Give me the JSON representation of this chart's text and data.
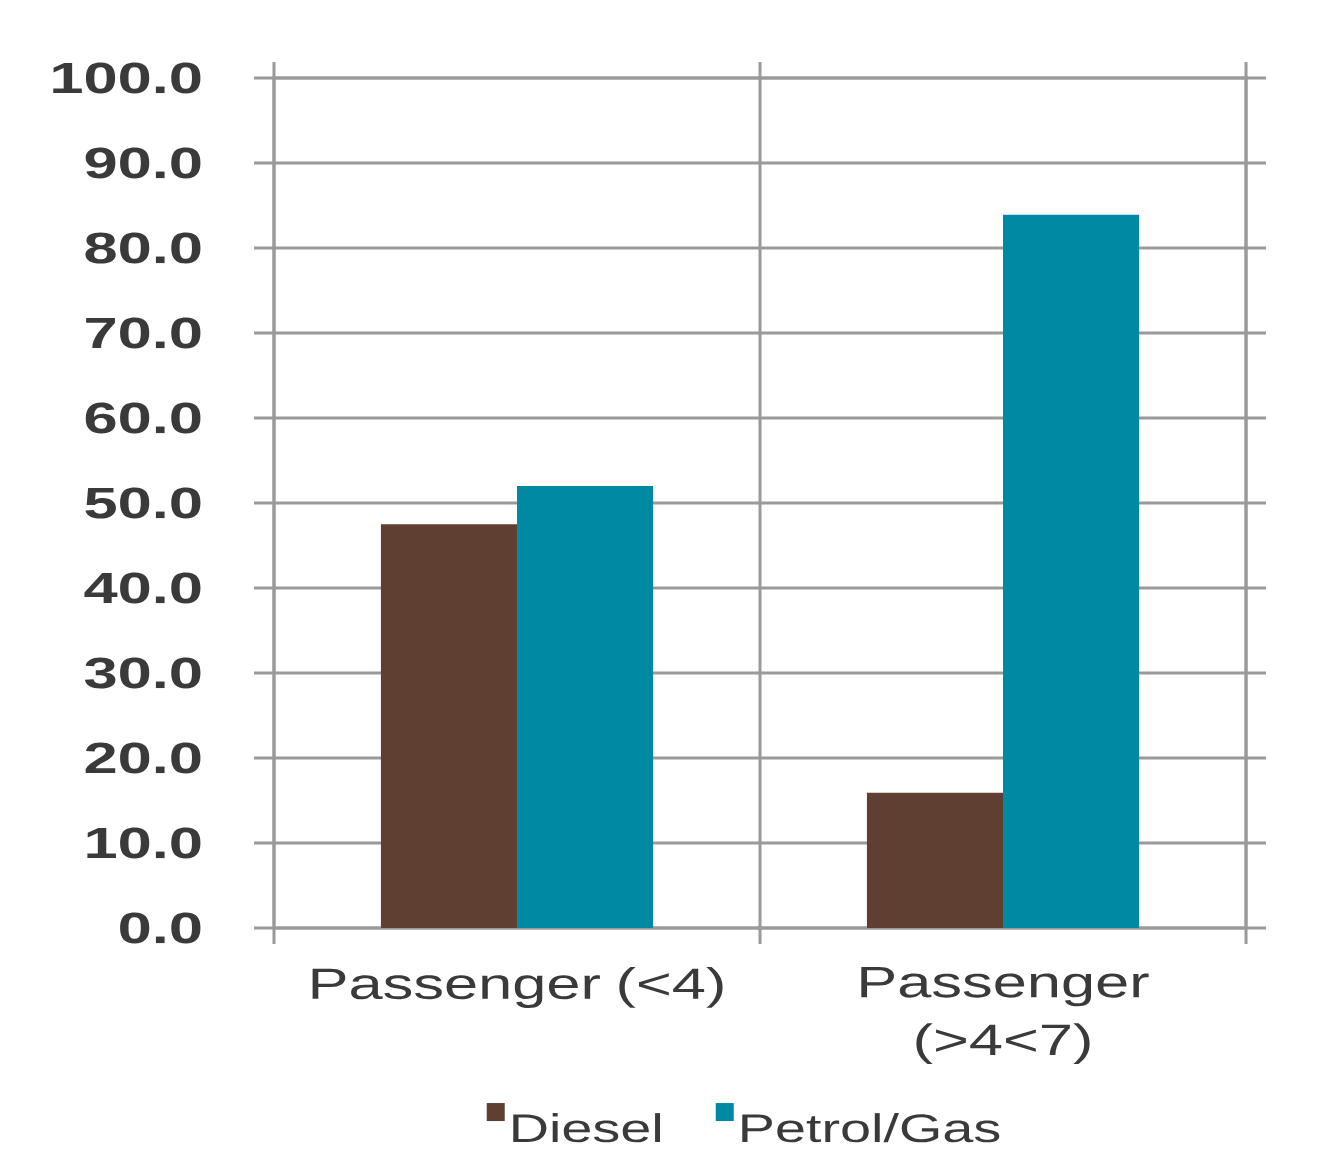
{
  "chart_data": {
    "type": "bar",
    "categories": [
      "Passenger (<4)",
      "Passenger (>4<7)"
    ],
    "series": [
      {
        "name": "Diesel",
        "color": "#5f3f31",
        "values": [
          47.5,
          15.9
        ]
      },
      {
        "name": "Petrol/Gas",
        "color": "#0089a3",
        "values": [
          52.0,
          83.9
        ]
      }
    ],
    "ylim": [
      0,
      100
    ],
    "yticks": [
      {
        "value": 0,
        "label": "0.0"
      },
      {
        "value": 10,
        "label": "10.0"
      },
      {
        "value": 20,
        "label": "20.0"
      },
      {
        "value": 30,
        "label": "30.0"
      },
      {
        "value": 40,
        "label": "40.0"
      },
      {
        "value": 50,
        "label": "50.0"
      },
      {
        "value": 60,
        "label": "60.0"
      },
      {
        "value": 70,
        "label": "70.0"
      },
      {
        "value": 80,
        "label": "80.0"
      },
      {
        "value": 90,
        "label": "90.0"
      },
      {
        "value": 100,
        "label": "100.0"
      }
    ],
    "grid": true,
    "legend": "bottom"
  }
}
